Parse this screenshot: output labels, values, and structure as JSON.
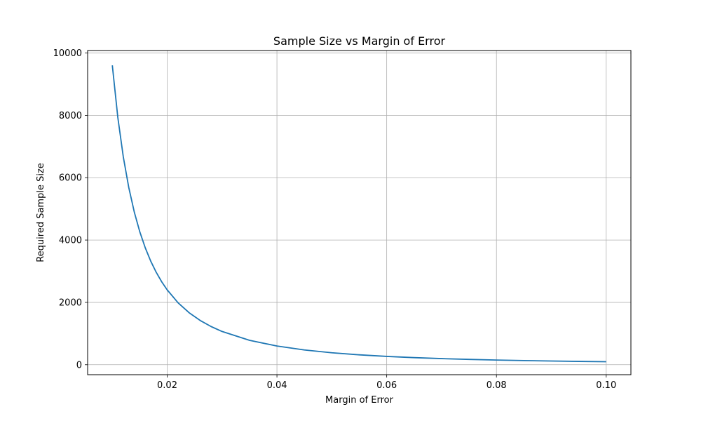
{
  "chart_data": {
    "type": "line",
    "title": "Sample Size vs Margin of Error",
    "xlabel": "Margin of Error",
    "ylabel": "Required Sample Size",
    "xlim": [
      0.0055,
      0.1045
    ],
    "ylim": [
      -320,
      10080
    ],
    "xticks": [
      0.02,
      0.04,
      0.06,
      0.08,
      0.1
    ],
    "xtick_labels": [
      "0.02",
      "0.04",
      "0.06",
      "0.08",
      "0.10"
    ],
    "yticks": [
      0,
      2000,
      4000,
      6000,
      8000,
      10000
    ],
    "ytick_labels": [
      "0",
      "2000",
      "4000",
      "6000",
      "8000",
      "10000"
    ],
    "grid": true,
    "series": [
      {
        "color": "#1f77b4",
        "x": [
          0.01,
          0.011,
          0.012,
          0.013,
          0.014,
          0.015,
          0.016,
          0.017,
          0.018,
          0.019,
          0.02,
          0.022,
          0.024,
          0.026,
          0.028,
          0.03,
          0.035,
          0.04,
          0.045,
          0.05,
          0.055,
          0.06,
          0.065,
          0.07,
          0.075,
          0.08,
          0.085,
          0.09,
          0.095,
          0.1
        ],
        "y": [
          9604,
          7937,
          6669,
          5683,
          4900,
          4268,
          3752,
          3323,
          2964,
          2660,
          2401,
          1984,
          1667,
          1421,
          1225,
          1067,
          784,
          600,
          474,
          384,
          317,
          267,
          227,
          196,
          171,
          150,
          133,
          119,
          106,
          96
        ]
      }
    ]
  }
}
